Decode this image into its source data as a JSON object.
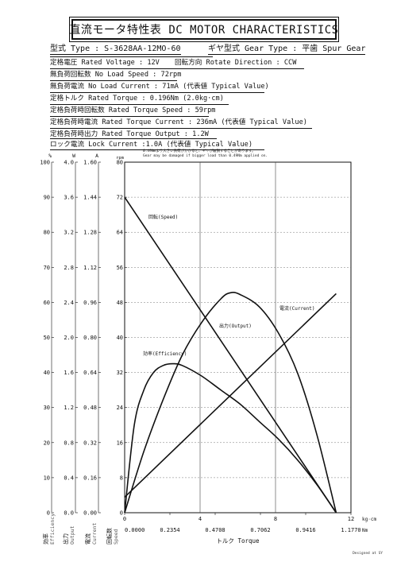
{
  "title": "直流モータ特性表 DC MOTOR CHARACTERISTICS",
  "model_line": "型式 Type : S-3628AA-12MO-60",
  "gear_line": "ギヤ型式 Gear Type : 平歯 Spur Gear",
  "specs": {
    "rated_voltage": "定格電圧 Rated Voltage : 12V",
    "rotate_direction": "回転方向 Rotate Direction : CCW",
    "no_load_speed": "無負荷回転数 No Load Speed : 72rpm",
    "no_load_current": "無負荷電流 No Load Current : 71mA (代表値 Typical Value)",
    "rated_torque": "定格トルク Rated Torque : 0.196Nm (2.0kg·cm)",
    "rated_torque_speed": "定格負荷時回転数 Rated Torque Speed : 59rpm",
    "rated_torque_current": "定格負荷時電流 Rated Torque Current : 236mA (代表値 Typical Value)",
    "rated_torque_output": "定格負荷時出力 Rated Torque Output : 1.2W",
    "lock_current": "ロック電流 Lock Current :1.0A (代表値 Typical Value)"
  },
  "note": {
    "jp": "0.49Nmより大きい負荷がかかると、ギヤが破損することがあります。",
    "en": "Gear may be damaged if bigger load than 0.49Nm applied on."
  },
  "credit": "Designed at SY",
  "chart_data": {
    "type": "line",
    "xlabel": "トルク Torque",
    "x_unit_kgcm": "kg·cm",
    "x_unit_nm": "Nm",
    "x_kgcm_ticks": [
      "0",
      "4",
      "8",
      "12"
    ],
    "x_nm_ticks": [
      "0.0000",
      "0.2354",
      "0.4708",
      "0.7062",
      "0.9416",
      "1.1770"
    ],
    "xlim_nm": [
      0,
      1.177
    ],
    "axes": [
      {
        "label": "効率 Efficiency",
        "unit": "%",
        "ticks": [
          "0",
          "10",
          "20",
          "30",
          "40",
          "50",
          "60",
          "70",
          "80",
          "90",
          "100"
        ]
      },
      {
        "label": "出力 Output",
        "unit": "W",
        "ticks": [
          "0.0",
          "0.4",
          "0.8",
          "1.2",
          "1.6",
          "2.0",
          "2.4",
          "2.8",
          "3.2",
          "3.6",
          "4.0"
        ]
      },
      {
        "label": "電流 Current",
        "unit": "A",
        "ticks": [
          "0.00",
          "0.16",
          "0.32",
          "0.48",
          "0.64",
          "0.80",
          "0.96",
          "1.12",
          "1.28",
          "1.44",
          "1.60"
        ]
      },
      {
        "label": "回転数 Speed",
        "unit": "rpm",
        "ticks": [
          "0",
          "8",
          "16",
          "24",
          "32",
          "40",
          "48",
          "56",
          "64",
          "72",
          "80"
        ]
      }
    ],
    "series": [
      {
        "name": "回転(Speed)",
        "axis": "rpm",
        "x": [
          0.0,
          1.1
        ],
        "y": [
          72,
          0
        ]
      },
      {
        "name": "電流(Current)",
        "axis": "A",
        "x": [
          0.0,
          1.1
        ],
        "y": [
          0.071,
          1.0
        ]
      },
      {
        "name": "出力(Output)",
        "axis": "W",
        "x": [
          0.0,
          0.1,
          0.2,
          0.3,
          0.4,
          0.5,
          0.55,
          0.6,
          0.7,
          0.8,
          0.9,
          1.0,
          1.1
        ],
        "y": [
          0.0,
          0.7,
          1.29,
          1.8,
          2.17,
          2.44,
          2.51,
          2.49,
          2.35,
          2.05,
          1.59,
          0.89,
          0.0
        ]
      },
      {
        "name": "効率(Efficiency)",
        "axis": "%",
        "x": [
          0.0,
          0.05,
          0.1,
          0.15,
          0.2,
          0.25,
          0.3,
          0.4,
          0.5,
          0.6,
          0.7,
          0.8,
          0.9,
          1.0,
          1.1
        ],
        "y": [
          0,
          25,
          35,
          40,
          42,
          42.5,
          42,
          39,
          35,
          31,
          26,
          21,
          15,
          8,
          0
        ]
      }
    ],
    "grid": true
  }
}
